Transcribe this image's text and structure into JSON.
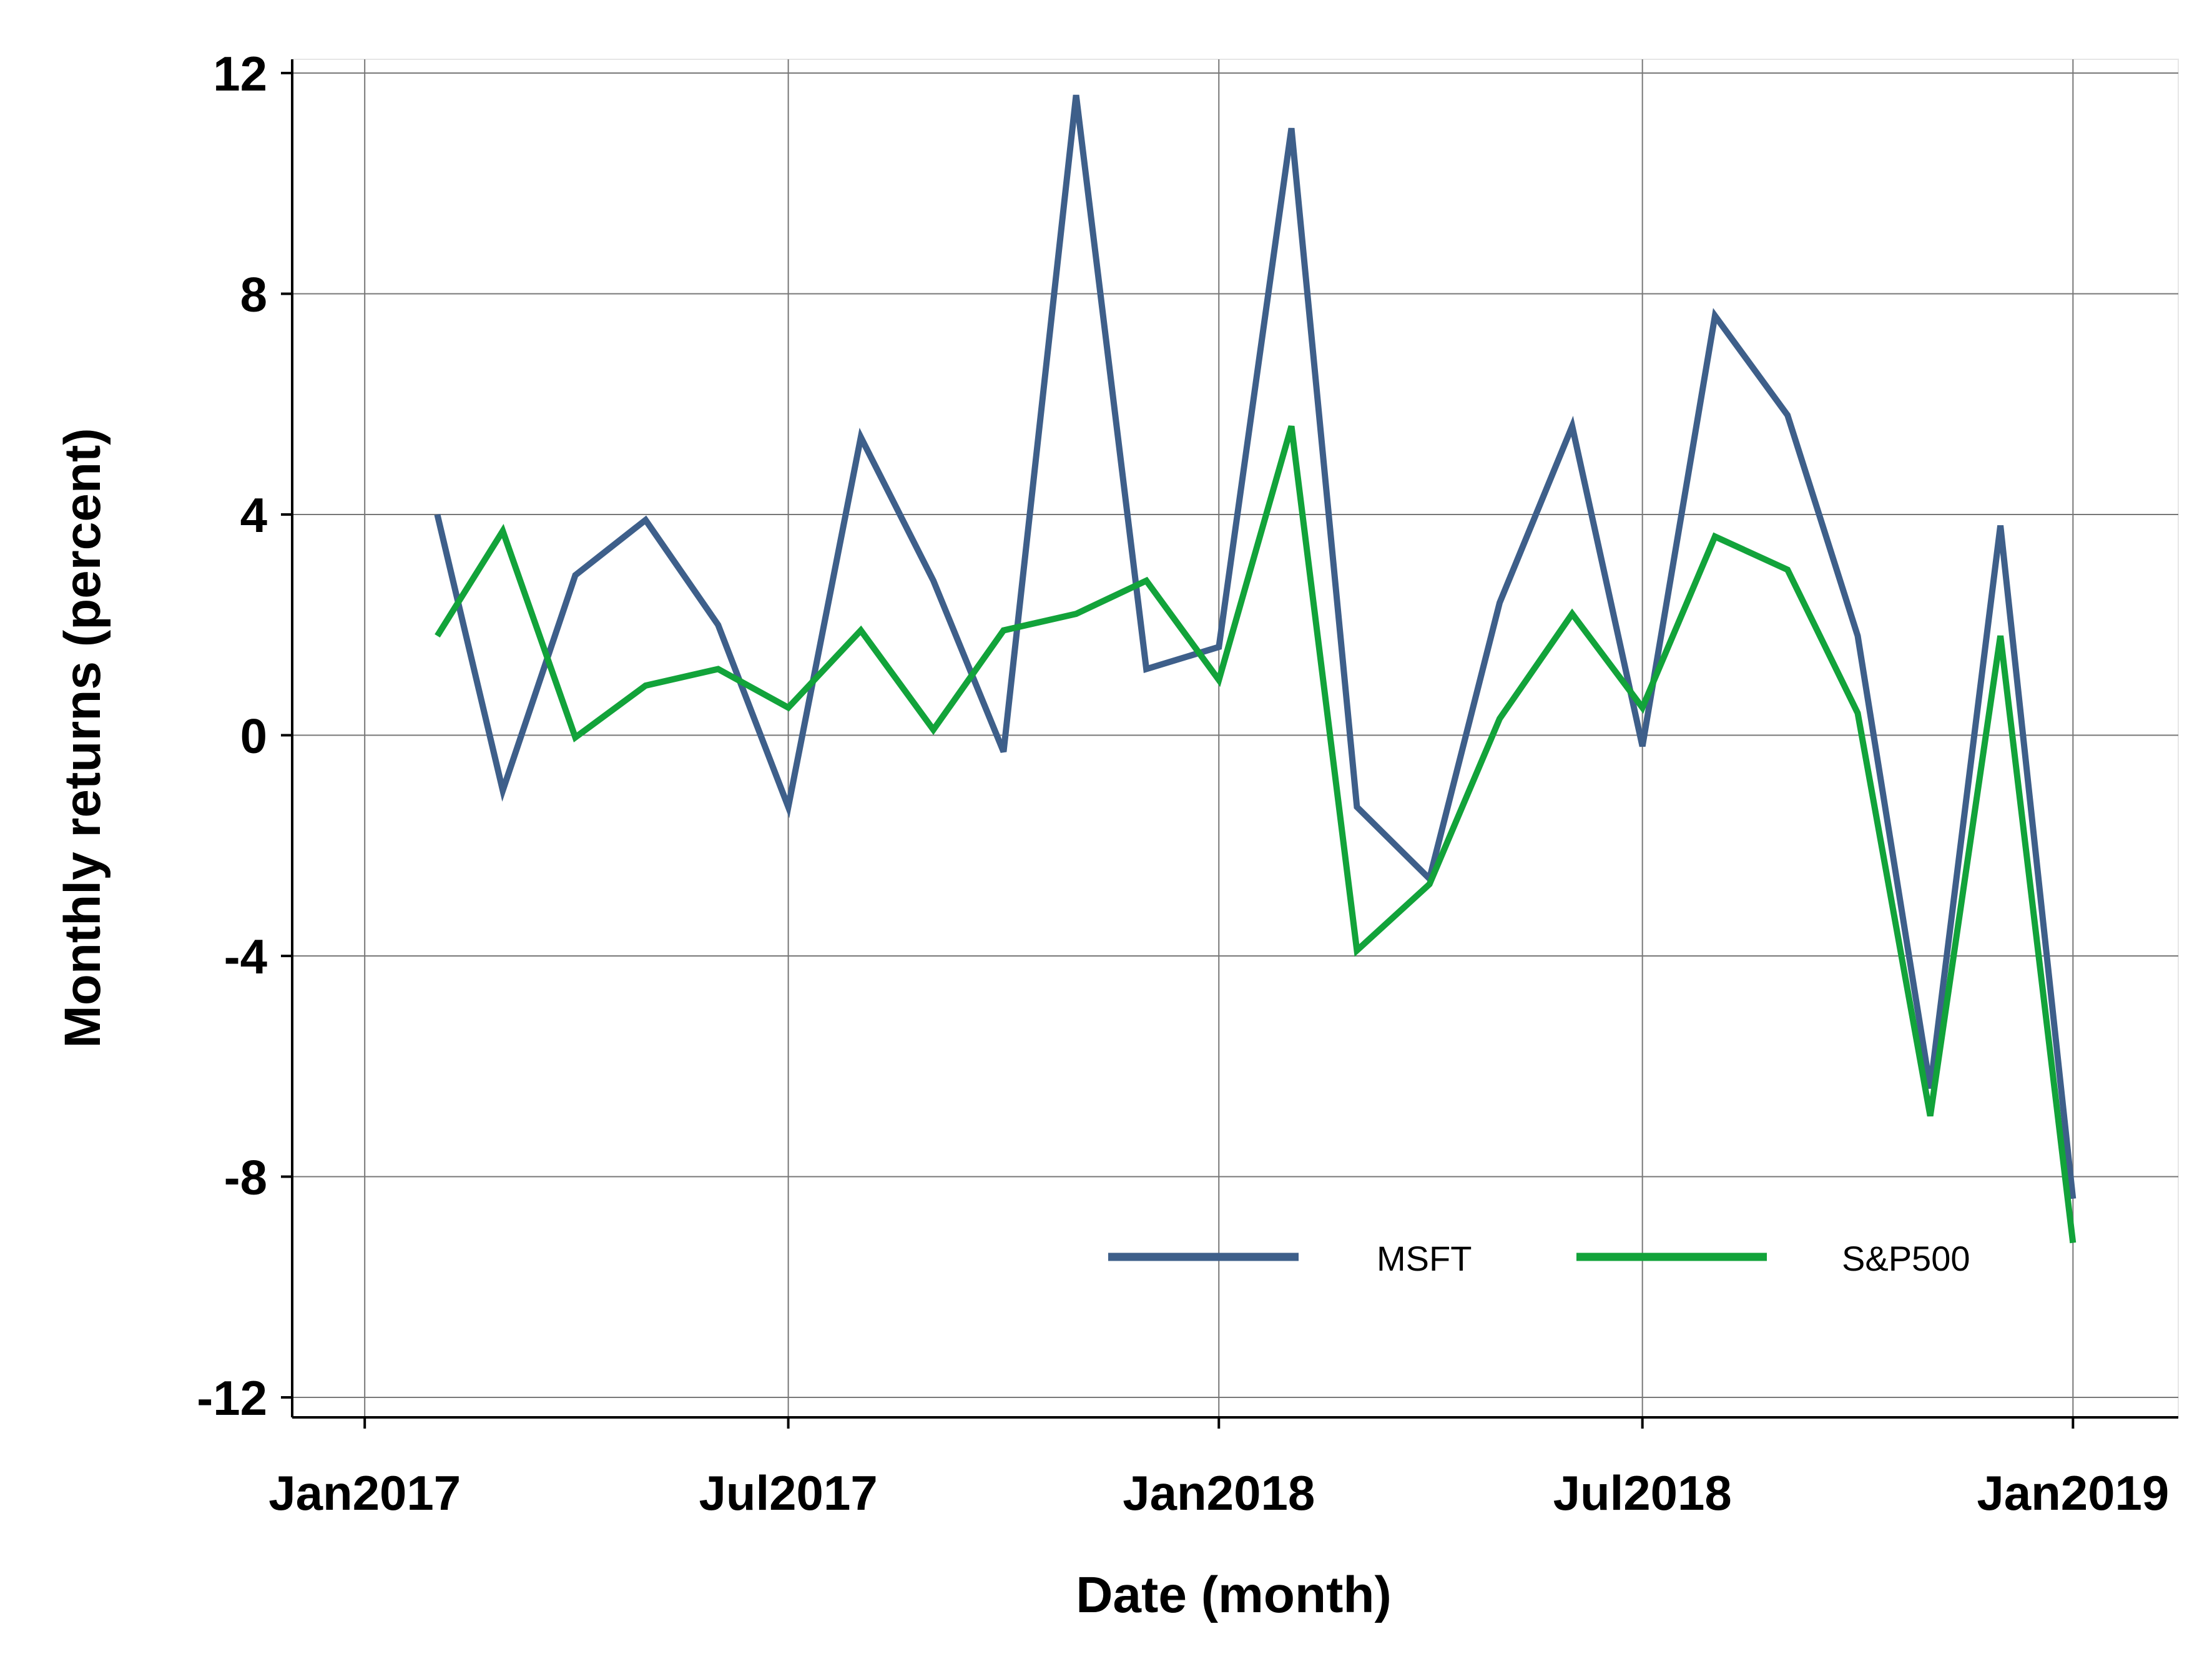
{
  "chart_data": {
    "type": "line",
    "title": "",
    "xlabel": "Date (month)",
    "ylabel": "Monthly returns (percent)",
    "xlim": [
      "2016-12-01",
      "2019-02-15"
    ],
    "ylim": [
      -12,
      12
    ],
    "yticks": [
      -12,
      -8,
      -4,
      0,
      4,
      8,
      12
    ],
    "ytick_labels": [
      "-12",
      "-8",
      "-4",
      "0",
      "4",
      "8",
      "12"
    ],
    "xticks": [
      "2017-01-01",
      "2017-07-01",
      "2018-01-01",
      "2018-07-01",
      "2019-01-01"
    ],
    "xtick_labels": [
      "Jan2017",
      "Jul2017",
      "Jan2018",
      "Jul2018",
      "Jan2019"
    ],
    "grid": true,
    "legend_position": "bottom-right",
    "x": [
      "2017-02-01",
      "2017-03-01",
      "2017-04-01",
      "2017-05-01",
      "2017-06-01",
      "2017-07-01",
      "2017-08-01",
      "2017-09-01",
      "2017-10-01",
      "2017-11-01",
      "2017-12-01",
      "2018-01-01",
      "2018-02-01",
      "2018-03-01",
      "2018-04-01",
      "2018-05-01",
      "2018-06-01",
      "2018-07-01",
      "2018-08-01",
      "2018-09-01",
      "2018-10-01",
      "2018-11-01",
      "2018-12-01",
      "2019-01-01"
    ],
    "series": [
      {
        "name": "MSFT",
        "color": "#3e5f8a",
        "values": [
          4.0,
          -1.0,
          2.9,
          3.9,
          2.0,
          -1.3,
          5.4,
          2.8,
          -0.3,
          11.6,
          1.2,
          1.6,
          11.0,
          -1.3,
          -2.6,
          2.4,
          5.6,
          -0.2,
          7.6,
          5.8,
          1.8,
          -6.4,
          3.8,
          -8.4
        ]
      },
      {
        "name": "S&P500",
        "color": "#12a33a",
        "values": [
          1.8,
          3.7,
          -0.04,
          0.9,
          1.2,
          0.5,
          1.9,
          0.1,
          1.9,
          2.2,
          2.8,
          1.0,
          5.6,
          -3.9,
          -2.7,
          0.3,
          2.2,
          0.5,
          3.6,
          3.0,
          0.4,
          -6.9,
          1.8,
          -9.2
        ]
      }
    ]
  }
}
